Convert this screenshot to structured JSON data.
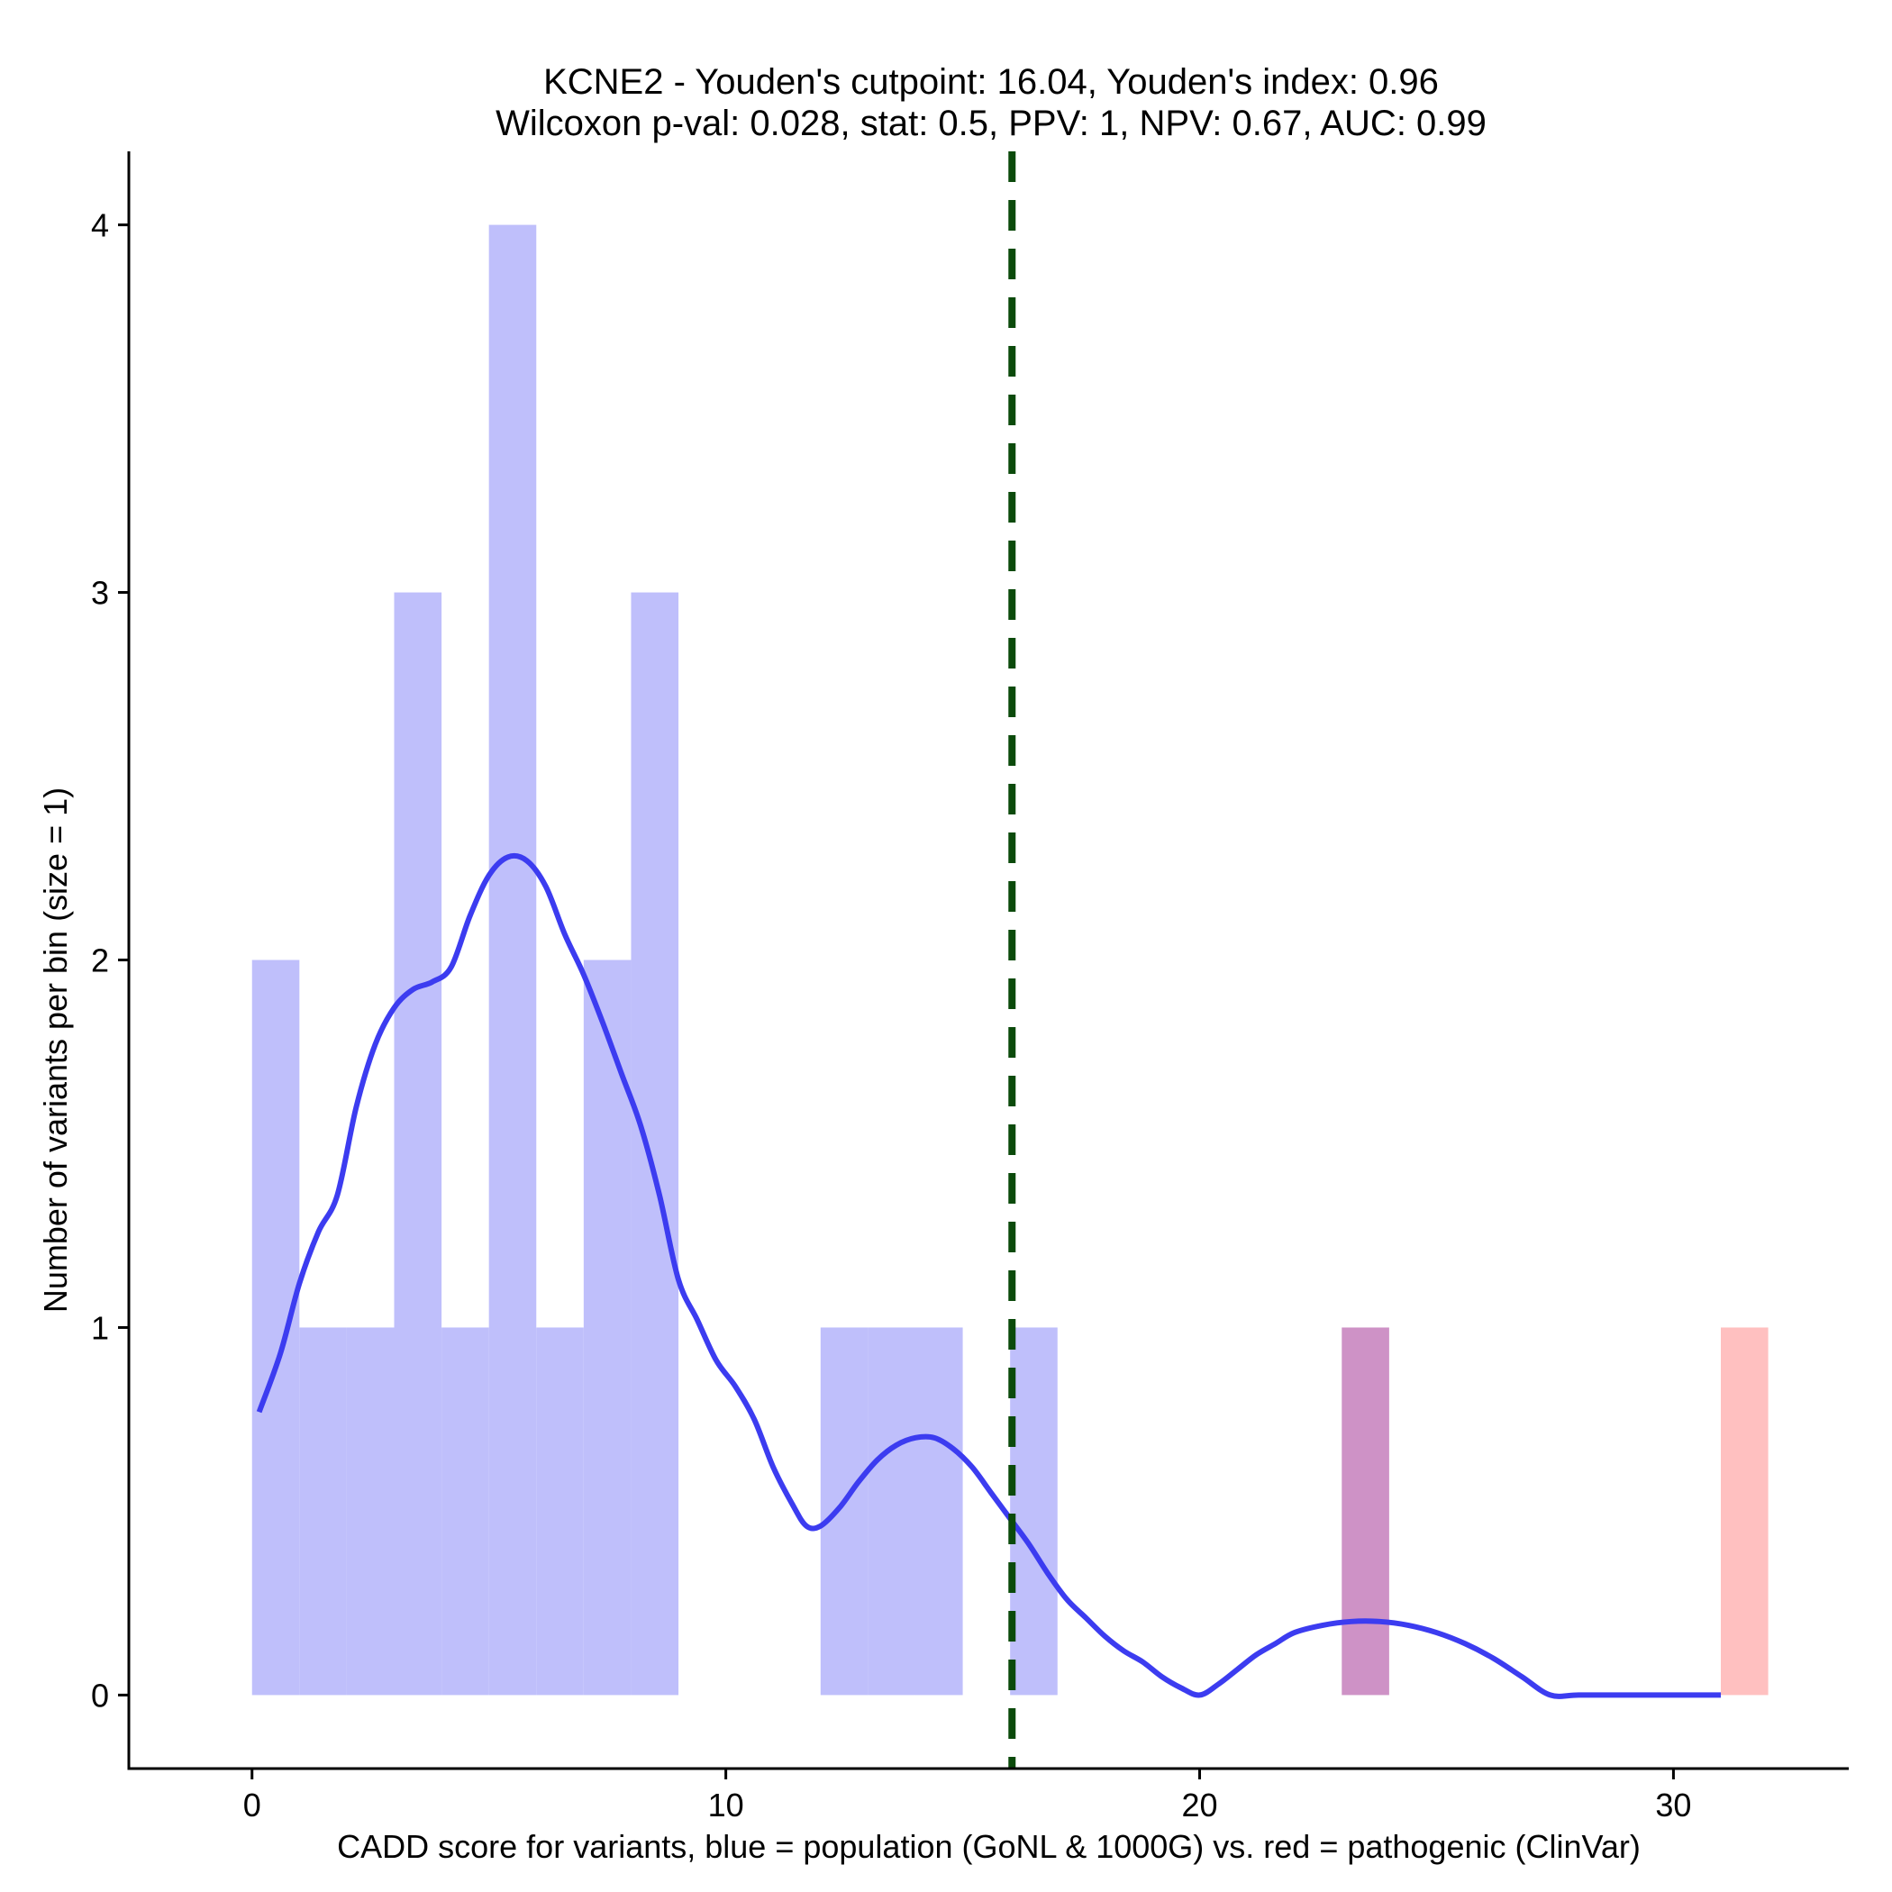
{
  "chart_data": {
    "type": "bar",
    "title_lines": [
      "KCNE2 - Youden's cutpoint: 16.04, Youden's index: 0.96",
      "Wilcoxon p-val: 0.028, stat: 0.5, PPV: 1, NPV: 0.67, AUC: 0.99"
    ],
    "xlabel": "CADD score for variants, blue = population (GoNL & 1000G) vs. red = pathogenic (ClinVar)",
    "ylabel": "Number of variants per bin (size = 1)",
    "xlim": [
      -2.6,
      33.7
    ],
    "ylim": [
      -0.2,
      4.2
    ],
    "x_ticks": [
      0,
      10,
      20,
      30
    ],
    "y_ticks": [
      0,
      1,
      2,
      3,
      4
    ],
    "bin_width": 1,
    "colors": {
      "population": "#BFBFFB",
      "pathogenic": "#FFC0C0",
      "overlap": "#CE92C6",
      "density": "#3C3CF0",
      "cutpoint": "#0B4A0B"
    },
    "series": [
      {
        "name": "population",
        "bins": [
          {
            "start": 0,
            "count": 2
          },
          {
            "start": 1,
            "count": 1
          },
          {
            "start": 2,
            "count": 1
          },
          {
            "start": 3,
            "count": 3
          },
          {
            "start": 4,
            "count": 1
          },
          {
            "start": 5,
            "count": 4
          },
          {
            "start": 6,
            "count": 1
          },
          {
            "start": 7,
            "count": 2
          },
          {
            "start": 8,
            "count": 3
          },
          {
            "start": 12,
            "count": 1
          },
          {
            "start": 13,
            "count": 1
          },
          {
            "start": 14,
            "count": 1
          },
          {
            "start": 16,
            "count": 1
          },
          {
            "start": 23,
            "count": 1
          }
        ]
      },
      {
        "name": "pathogenic",
        "bins": [
          {
            "start": 23,
            "count": 1
          },
          {
            "start": 31,
            "count": 1
          }
        ]
      }
    ],
    "cutpoint": 16.04,
    "density_curve": [
      [
        0.15,
        0.77
      ],
      [
        0.6,
        0.93
      ],
      [
        1.0,
        1.12
      ],
      [
        1.4,
        1.26
      ],
      [
        1.8,
        1.36
      ],
      [
        2.2,
        1.6
      ],
      [
        2.6,
        1.77
      ],
      [
        3.0,
        1.87
      ],
      [
        3.4,
        1.92
      ],
      [
        3.8,
        1.94
      ],
      [
        4.2,
        1.98
      ],
      [
        4.6,
        2.12
      ],
      [
        5.0,
        2.23
      ],
      [
        5.4,
        2.28
      ],
      [
        5.8,
        2.27
      ],
      [
        6.2,
        2.2
      ],
      [
        6.6,
        2.07
      ],
      [
        7.0,
        1.96
      ],
      [
        7.4,
        1.83
      ],
      [
        7.8,
        1.69
      ],
      [
        8.2,
        1.55
      ],
      [
        8.6,
        1.36
      ],
      [
        9.0,
        1.13
      ],
      [
        9.4,
        1.02
      ],
      [
        9.8,
        0.91
      ],
      [
        10.2,
        0.84
      ],
      [
        10.6,
        0.75
      ],
      [
        11.0,
        0.62
      ],
      [
        11.4,
        0.52
      ],
      [
        11.7,
        0.46
      ],
      [
        12.0,
        0.46
      ],
      [
        12.4,
        0.51
      ],
      [
        12.8,
        0.58
      ],
      [
        13.2,
        0.64
      ],
      [
        13.6,
        0.68
      ],
      [
        14.0,
        0.7
      ],
      [
        14.4,
        0.7
      ],
      [
        14.8,
        0.67
      ],
      [
        15.2,
        0.62
      ],
      [
        15.6,
        0.55
      ],
      [
        16.0,
        0.48
      ],
      [
        16.4,
        0.41
      ],
      [
        16.8,
        0.33
      ],
      [
        17.2,
        0.26
      ],
      [
        17.6,
        0.21
      ],
      [
        18.0,
        0.16
      ],
      [
        18.4,
        0.12
      ],
      [
        18.8,
        0.09
      ],
      [
        19.2,
        0.05
      ],
      [
        19.6,
        0.02
      ],
      [
        20.0,
        0.0
      ],
      [
        20.4,
        0.03
      ],
      [
        20.8,
        0.07
      ],
      [
        21.2,
        0.11
      ],
      [
        21.6,
        0.14
      ],
      [
        22.0,
        0.17
      ],
      [
        22.6,
        0.19
      ],
      [
        23.2,
        0.2
      ],
      [
        23.8,
        0.2
      ],
      [
        24.4,
        0.19
      ],
      [
        25.0,
        0.17
      ],
      [
        25.6,
        0.14
      ],
      [
        26.2,
        0.1
      ],
      [
        26.8,
        0.05
      ],
      [
        27.4,
        0.0
      ],
      [
        28.0,
        0.0
      ],
      [
        29.0,
        0.0
      ],
      [
        30.0,
        0.0
      ],
      [
        31.0,
        0.0
      ]
    ]
  }
}
